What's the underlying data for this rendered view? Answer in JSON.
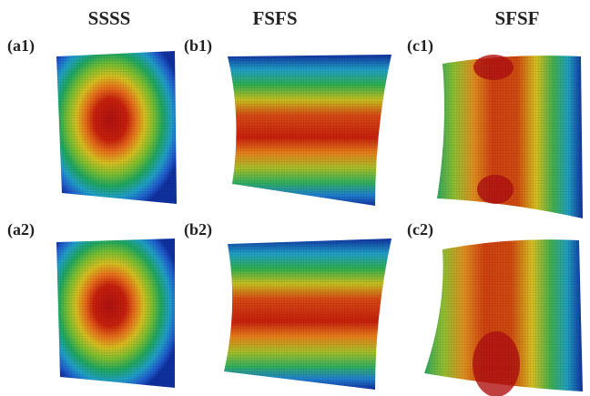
{
  "columns": [
    "SSSS",
    "FSFS",
    "SFSF"
  ],
  "panels": [
    "(a1)",
    "(b1)",
    "(c1)",
    "(a2)",
    "(b2)",
    "(c2)"
  ]
}
